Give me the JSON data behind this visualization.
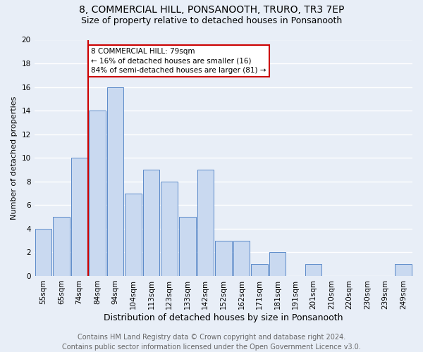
{
  "title": "8, COMMERCIAL HILL, PONSANOOTH, TRURO, TR3 7EP",
  "subtitle": "Size of property relative to detached houses in Ponsanooth",
  "xlabel": "Distribution of detached houses by size in Ponsanooth",
  "ylabel": "Number of detached properties",
  "bins": [
    "55sqm",
    "65sqm",
    "74sqm",
    "84sqm",
    "94sqm",
    "104sqm",
    "113sqm",
    "123sqm",
    "133sqm",
    "142sqm",
    "152sqm",
    "162sqm",
    "171sqm",
    "181sqm",
    "191sqm",
    "201sqm",
    "210sqm",
    "220sqm",
    "230sqm",
    "239sqm",
    "249sqm"
  ],
  "values": [
    4,
    5,
    10,
    14,
    16,
    7,
    9,
    8,
    5,
    9,
    3,
    3,
    1,
    2,
    0,
    1,
    0,
    0,
    0,
    0,
    1
  ],
  "bar_color": "#c9d9f0",
  "bar_edge_color": "#5b8ac9",
  "vline_color": "#cc0000",
  "annotation_text": "8 COMMERCIAL HILL: 79sqm\n← 16% of detached houses are smaller (16)\n84% of semi-detached houses are larger (81) →",
  "annotation_box_color": "#cc0000",
  "ylim": [
    0,
    20
  ],
  "yticks": [
    0,
    2,
    4,
    6,
    8,
    10,
    12,
    14,
    16,
    18,
    20
  ],
  "footer_text": "Contains HM Land Registry data © Crown copyright and database right 2024.\nContains public sector information licensed under the Open Government Licence v3.0.",
  "background_color": "#e8eef7",
  "grid_color": "#ffffff",
  "title_fontsize": 10,
  "subtitle_fontsize": 9,
  "ylabel_fontsize": 8,
  "xlabel_fontsize": 9,
  "tick_fontsize": 7.5,
  "annotation_fontsize": 7.5,
  "footer_fontsize": 7
}
